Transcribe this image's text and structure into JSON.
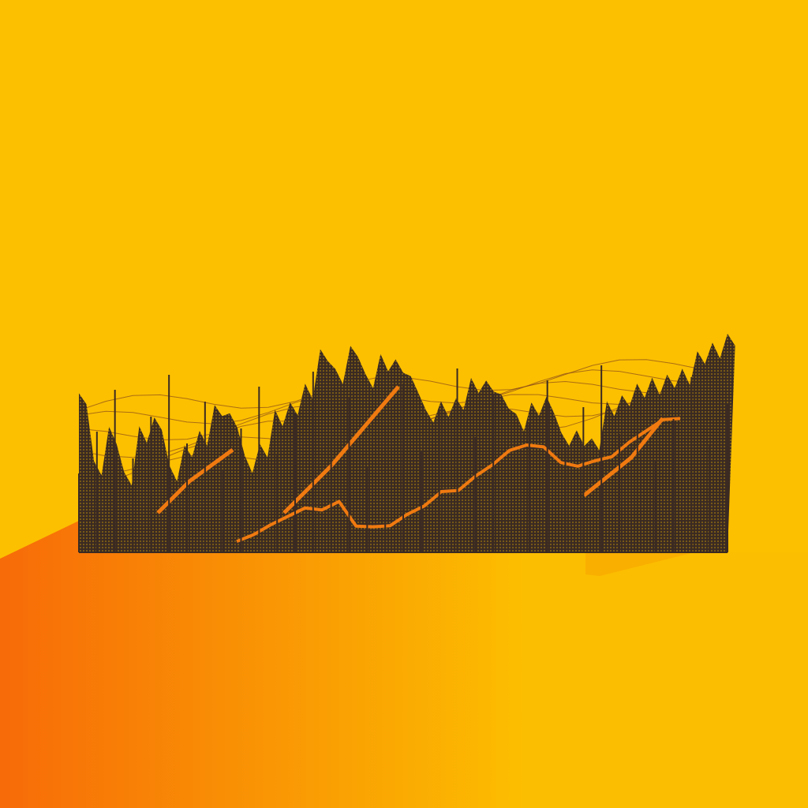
{
  "artwork": {
    "colors": {
      "background": "#FCC000",
      "orange_floor": "#F76B08",
      "floor_fade": "#FCBE00",
      "silhouette": "#3A2A22",
      "accent_line": "#F07A10",
      "thin_line": "#8A4A1A",
      "shadow": "#F5A200"
    },
    "ridge_profile": [
      0.62,
      0.12,
      0.34,
      0.06,
      0.36,
      0.4,
      0.1,
      0.22,
      0.3,
      0.52,
      0.44,
      0.18,
      0.24,
      0.46,
      0.55,
      0.66,
      0.88,
      0.78,
      0.92,
      0.7,
      0.88,
      0.82,
      0.74,
      0.48,
      0.52,
      0.58,
      0.7,
      0.66,
      0.6,
      0.44,
      0.5,
      0.58,
      0.3,
      0.36,
      0.28,
      0.52,
      0.6,
      0.66,
      0.68,
      0.74,
      0.76,
      0.86,
      0.96,
      1.0
    ],
    "accent_profile": [
      0.02,
      0.05,
      0.1,
      0.14,
      0.18,
      0.22,
      0.26,
      0.08,
      0.06,
      0.12,
      0.18,
      0.22,
      0.3,
      0.36,
      0.44,
      0.5,
      0.58,
      0.6,
      0.64,
      0.52,
      0.48,
      0.5,
      0.58,
      0.66,
      0.72,
      0.78,
      0.84
    ],
    "guide_lines_count": 6
  }
}
